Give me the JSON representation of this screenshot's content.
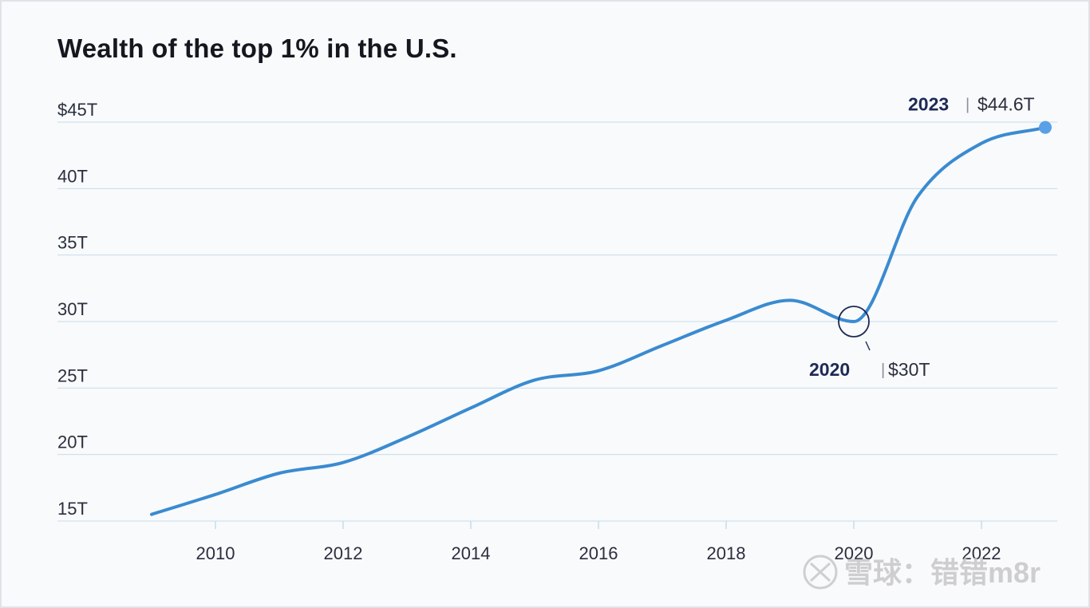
{
  "chart_data": {
    "type": "line",
    "title": "Wealth of the top 1% in the U.S.",
    "xlabel": "",
    "ylabel": "",
    "xlim": [
      2009,
      2023
    ],
    "ylim": [
      15,
      45
    ],
    "grid": true,
    "y_ticks": [
      {
        "value": 45,
        "label": "$45T"
      },
      {
        "value": 40,
        "label": "40T"
      },
      {
        "value": 35,
        "label": "35T"
      },
      {
        "value": 30,
        "label": "30T"
      },
      {
        "value": 25,
        "label": "25T"
      },
      {
        "value": 20,
        "label": "20T"
      },
      {
        "value": 15,
        "label": "15T"
      }
    ],
    "x_ticks": [
      {
        "value": 2010,
        "label": "2010"
      },
      {
        "value": 2012,
        "label": "2012"
      },
      {
        "value": 2014,
        "label": "2014"
      },
      {
        "value": 2016,
        "label": "2016"
      },
      {
        "value": 2018,
        "label": "2018"
      },
      {
        "value": 2020,
        "label": "2020"
      },
      {
        "value": 2022,
        "label": "2022"
      }
    ],
    "series": [
      {
        "color": "#3a8bd0",
        "points": [
          {
            "x": 2009,
            "y": 15.5
          },
          {
            "x": 2010,
            "y": 17.0
          },
          {
            "x": 2011,
            "y": 18.6
          },
          {
            "x": 2012,
            "y": 19.4
          },
          {
            "x": 2013,
            "y": 21.3
          },
          {
            "x": 2014,
            "y": 23.5
          },
          {
            "x": 2015,
            "y": 25.6
          },
          {
            "x": 2016,
            "y": 26.3
          },
          {
            "x": 2017,
            "y": 28.2
          },
          {
            "x": 2018,
            "y": 30.1
          },
          {
            "x": 2019,
            "y": 31.6
          },
          {
            "x": 2020,
            "y": 30.0
          },
          {
            "x": 2021,
            "y": 39.4
          },
          {
            "x": 2022,
            "y": 43.4
          },
          {
            "x": 2023,
            "y": 44.6
          }
        ]
      }
    ],
    "annotations": [
      {
        "id": "ann2020",
        "x": 2020,
        "y": 30.0,
        "year": "2020",
        "separator": "|",
        "value": "$30T"
      },
      {
        "id": "ann2023",
        "x": 2023,
        "y": 44.6,
        "year": "2023",
        "separator": "|",
        "value": "$44.6T"
      }
    ]
  },
  "watermark": {
    "text": "雪球：错错m8r"
  }
}
